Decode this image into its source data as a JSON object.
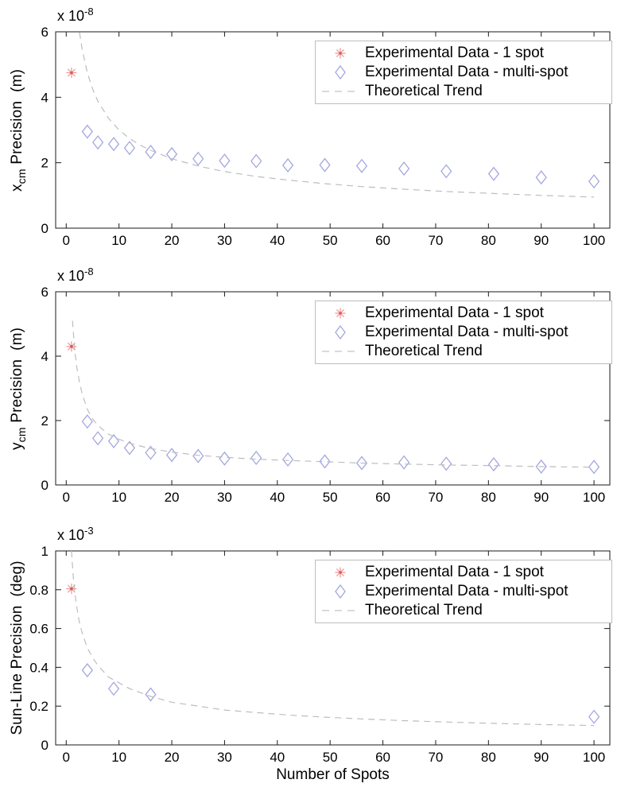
{
  "figure": {
    "x_axis_label": "Number of Spots",
    "marker_colors": {
      "one_spot_arms": "#f09a9a",
      "one_spot_center": "#d65a5a",
      "multi_spot": "#a4a8de",
      "trend": "#bdbdbd"
    }
  },
  "chart_data": [
    {
      "id": "xcm-precision",
      "type": "scatter",
      "title": "",
      "ylabel": {
        "pre": "x",
        "sub": "cm",
        "post": " Precision  (m)"
      },
      "y_exponent": {
        "base": "x 10",
        "power": "-8"
      },
      "xlabel": "",
      "xlim": [
        -2,
        103
      ],
      "ylim": [
        0,
        6
      ],
      "xtick_values": [
        0,
        10,
        20,
        30,
        40,
        50,
        60,
        70,
        80,
        90,
        100
      ],
      "xtick_labels": [
        "0",
        "10",
        "20",
        "30",
        "40",
        "50",
        "60",
        "70",
        "80",
        "90",
        "100"
      ],
      "ytick_values": [
        0,
        2,
        4,
        6
      ],
      "ytick_labels": [
        "0",
        "2",
        "4",
        "6"
      ],
      "grid": false,
      "legend": [
        "Experimental Data - 1 spot",
        "Experimental Data - multi-spot",
        "Theoretical Trend"
      ],
      "legend_position": "top-right",
      "series": [
        {
          "name": "Experimental Data - 1 spot",
          "marker": "asterisk",
          "points": [
            [
              1,
              4.75
            ]
          ]
        },
        {
          "name": "Experimental Data - multi-spot",
          "marker": "diamond",
          "points": [
            [
              4,
              2.95
            ],
            [
              6,
              2.62
            ],
            [
              9,
              2.57
            ],
            [
              12,
              2.45
            ],
            [
              16,
              2.33
            ],
            [
              20,
              2.26
            ],
            [
              25,
              2.12
            ],
            [
              30,
              2.06
            ],
            [
              36,
              2.05
            ],
            [
              42,
              1.92
            ],
            [
              49,
              1.93
            ],
            [
              56,
              1.9
            ],
            [
              64,
              1.82
            ],
            [
              72,
              1.74
            ],
            [
              81,
              1.66
            ],
            [
              90,
              1.55
            ],
            [
              100,
              1.43
            ]
          ]
        },
        {
          "name": "Theoretical Trend",
          "marker": "dashed-line",
          "points": [
            [
              2.52,
              5.98
            ],
            [
              3,
              5.48
            ],
            [
              4,
              4.75
            ],
            [
              5,
              4.25
            ],
            [
              6,
              3.88
            ],
            [
              8,
              3.36
            ],
            [
              10,
              3.0
            ],
            [
              12,
              2.74
            ],
            [
              14,
              2.54
            ],
            [
              16,
              2.38
            ],
            [
              20,
              2.12
            ],
            [
              25,
              1.9
            ],
            [
              30,
              1.73
            ],
            [
              36,
              1.58
            ],
            [
              42,
              1.47
            ],
            [
              49,
              1.36
            ],
            [
              56,
              1.27
            ],
            [
              64,
              1.19
            ],
            [
              72,
              1.12
            ],
            [
              81,
              1.06
            ],
            [
              90,
              1.0
            ],
            [
              100,
              0.95
            ]
          ]
        }
      ]
    },
    {
      "id": "ycm-precision",
      "type": "scatter",
      "title": "",
      "ylabel": {
        "pre": "y",
        "sub": "cm",
        "post": " Precision  (m)"
      },
      "y_exponent": {
        "base": "x 10",
        "power": "-8"
      },
      "xlabel": "",
      "xlim": [
        -2,
        103
      ],
      "ylim": [
        0,
        6
      ],
      "xtick_values": [
        0,
        10,
        20,
        30,
        40,
        50,
        60,
        70,
        80,
        90,
        100
      ],
      "xtick_labels": [
        "0",
        "10",
        "20",
        "30",
        "40",
        "50",
        "60",
        "70",
        "80",
        "90",
        "100"
      ],
      "ytick_values": [
        0,
        2,
        4,
        6
      ],
      "ytick_labels": [
        "0",
        "2",
        "4",
        "6"
      ],
      "grid": false,
      "legend": [
        "Experimental Data - 1 spot",
        "Experimental Data - multi-spot",
        "Theoretical Trend"
      ],
      "legend_position": "top-right",
      "series": [
        {
          "name": "Experimental Data - 1 spot",
          "marker": "asterisk",
          "points": [
            [
              1,
              4.3
            ]
          ]
        },
        {
          "name": "Experimental Data - multi-spot",
          "marker": "diamond",
          "points": [
            [
              4,
              1.97
            ],
            [
              6,
              1.45
            ],
            [
              9,
              1.36
            ],
            [
              12,
              1.15
            ],
            [
              16,
              1.0
            ],
            [
              20,
              0.93
            ],
            [
              25,
              0.9
            ],
            [
              30,
              0.82
            ],
            [
              36,
              0.84
            ],
            [
              42,
              0.79
            ],
            [
              49,
              0.73
            ],
            [
              56,
              0.68
            ],
            [
              64,
              0.7
            ],
            [
              72,
              0.66
            ],
            [
              81,
              0.64
            ],
            [
              90,
              0.57
            ],
            [
              100,
              0.56
            ]
          ]
        },
        {
          "name": "Theoretical Trend",
          "marker": "dashed-line",
          "points": [
            [
              1.2,
              5.1
            ],
            [
              1.6,
              4.2
            ],
            [
              2,
              3.65
            ],
            [
              2.5,
              3.2
            ],
            [
              3,
              2.85
            ],
            [
              4,
              2.35
            ],
            [
              5,
              2.05
            ],
            [
              6,
              1.85
            ],
            [
              8,
              1.58
            ],
            [
              10,
              1.42
            ],
            [
              12,
              1.3
            ],
            [
              14,
              1.21
            ],
            [
              16,
              1.13
            ],
            [
              20,
              1.02
            ],
            [
              25,
              0.92
            ],
            [
              30,
              0.86
            ],
            [
              36,
              0.8
            ],
            [
              42,
              0.76
            ],
            [
              49,
              0.72
            ],
            [
              56,
              0.68
            ],
            [
              64,
              0.65
            ],
            [
              72,
              0.62
            ],
            [
              81,
              0.6
            ],
            [
              90,
              0.57
            ],
            [
              100,
              0.55
            ]
          ]
        }
      ]
    },
    {
      "id": "sun-line-precision",
      "type": "scatter",
      "title": "",
      "ylabel": {
        "pre": "Sun-Line Precision  (deg)",
        "sub": "",
        "post": ""
      },
      "y_exponent": {
        "base": "x 10",
        "power": "-3"
      },
      "xlabel": "Number of Spots",
      "xlim": [
        -2,
        103
      ],
      "ylim": [
        0,
        1
      ],
      "xtick_values": [
        0,
        10,
        20,
        30,
        40,
        50,
        60,
        70,
        80,
        90,
        100
      ],
      "xtick_labels": [
        "0",
        "10",
        "20",
        "30",
        "40",
        "50",
        "60",
        "70",
        "80",
        "90",
        "100"
      ],
      "ytick_values": [
        0,
        0.2,
        0.4,
        0.6,
        0.8,
        1
      ],
      "ytick_labels": [
        "0",
        "0.2",
        "0.4",
        "0.6",
        "0.8",
        "1"
      ],
      "grid": false,
      "legend": [
        "Experimental Data - 1 spot",
        "Experimental Data - multi-spot",
        "Theoretical Trend"
      ],
      "legend_position": "top-right",
      "series": [
        {
          "name": "Experimental Data - 1 spot",
          "marker": "asterisk",
          "points": [
            [
              1,
              0.805
            ]
          ]
        },
        {
          "name": "Experimental Data - multi-spot",
          "marker": "diamond",
          "points": [
            [
              4,
              0.385
            ],
            [
              9,
              0.29
            ],
            [
              16,
              0.26
            ],
            [
              100,
              0.145
            ]
          ]
        },
        {
          "name": "Theoretical Trend",
          "marker": "dashed-line",
          "points": [
            [
              1,
              1.0
            ],
            [
              1.3,
              0.88
            ],
            [
              1.6,
              0.79
            ],
            [
              2,
              0.71
            ],
            [
              2.5,
              0.63
            ],
            [
              3,
              0.58
            ],
            [
              4,
              0.5
            ],
            [
              5,
              0.45
            ],
            [
              6,
              0.41
            ],
            [
              8,
              0.35
            ],
            [
              10,
              0.32
            ],
            [
              12,
              0.29
            ],
            [
              16,
              0.25
            ],
            [
              20,
              0.22
            ],
            [
              25,
              0.2
            ],
            [
              30,
              0.18
            ],
            [
              36,
              0.167
            ],
            [
              42,
              0.154
            ],
            [
              49,
              0.143
            ],
            [
              56,
              0.134
            ],
            [
              64,
              0.125
            ],
            [
              72,
              0.118
            ],
            [
              81,
              0.111
            ],
            [
              90,
              0.105
            ],
            [
              100,
              0.1
            ]
          ]
        }
      ]
    }
  ]
}
